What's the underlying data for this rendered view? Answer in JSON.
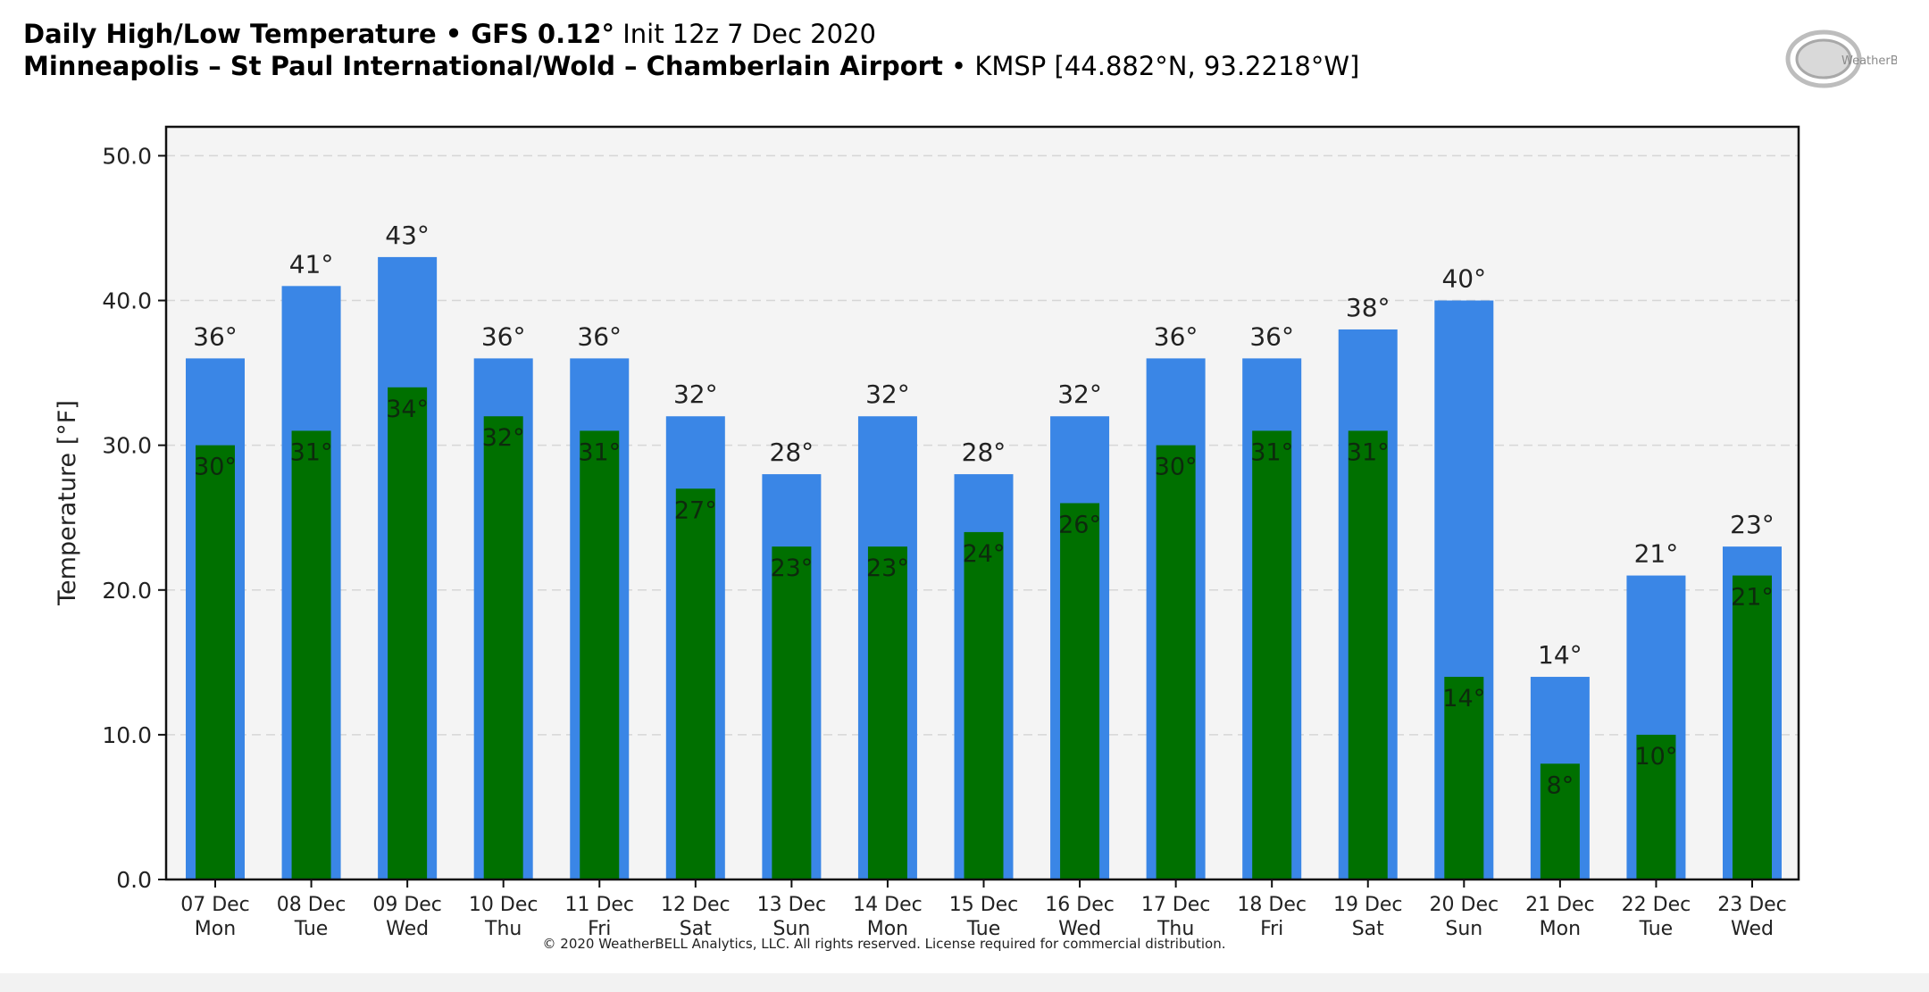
{
  "header": {
    "title_bold": "Daily High/Low Temperature • GFS 0.12°",
    "title_rest": " Init 12z 7 Dec 2020",
    "location_bold": "Minneapolis – St Paul International/Wold – Chamberlain Airport",
    "location_rest": " • KMSP [44.882°N, 93.2218°W]"
  },
  "logo": {
    "text": "WeatherBELL",
    "icon": "weatherbell-logo"
  },
  "copyright": "© 2020 WeatherBELL Analytics, LLC. All rights reserved. License required for commercial distribution.",
  "colors": {
    "high": "#3a86e6",
    "low": "#007000",
    "plot_bg": "#f4f4f4",
    "grid": "#d6d6d6"
  },
  "chart_data": {
    "type": "bar",
    "title": "Daily High/Low Temperature • GFS 0.12° Init 12z 7 Dec 2020",
    "xlabel": "",
    "ylabel": "Temperature [°F]",
    "ylim": [
      0,
      52
    ],
    "yticks": [
      "0.0",
      "10.0",
      "20.0",
      "30.0",
      "40.0",
      "50.0"
    ],
    "ytick_values": [
      0,
      10,
      20,
      30,
      40,
      50
    ],
    "grid": true,
    "categories": [
      [
        "07 Dec",
        "Mon"
      ],
      [
        "08 Dec",
        "Tue"
      ],
      [
        "09 Dec",
        "Wed"
      ],
      [
        "10 Dec",
        "Thu"
      ],
      [
        "11 Dec",
        "Fri"
      ],
      [
        "12 Dec",
        "Sat"
      ],
      [
        "13 Dec",
        "Sun"
      ],
      [
        "14 Dec",
        "Mon"
      ],
      [
        "15 Dec",
        "Tue"
      ],
      [
        "16 Dec",
        "Wed"
      ],
      [
        "17 Dec",
        "Thu"
      ],
      [
        "18 Dec",
        "Fri"
      ],
      [
        "19 Dec",
        "Sat"
      ],
      [
        "20 Dec",
        "Sun"
      ],
      [
        "21 Dec",
        "Mon"
      ],
      [
        "22 Dec",
        "Tue"
      ],
      [
        "23 Dec",
        "Wed"
      ]
    ],
    "series": [
      {
        "key": "high",
        "values": [
          36,
          41,
          43,
          36,
          36,
          32,
          28,
          32,
          28,
          32,
          36,
          36,
          38,
          40,
          14,
          21,
          23
        ],
        "labels": [
          "36°",
          "41°",
          "43°",
          "36°",
          "36°",
          "32°",
          "28°",
          "32°",
          "28°",
          "32°",
          "36°",
          "36°",
          "38°",
          "40°",
          "14°",
          "21°",
          "23°"
        ]
      },
      {
        "key": "low",
        "values": [
          30,
          31,
          34,
          32,
          31,
          27,
          23,
          23,
          24,
          26,
          30,
          31,
          31,
          14,
          8,
          10,
          21
        ],
        "labels": [
          "30°",
          "31°",
          "34°",
          "32°",
          "31°",
          "27°",
          "23°",
          "23°",
          "24°",
          "26°",
          "30°",
          "31°",
          "31°",
          "14°",
          "8°",
          "10°",
          "21°"
        ]
      }
    ]
  }
}
